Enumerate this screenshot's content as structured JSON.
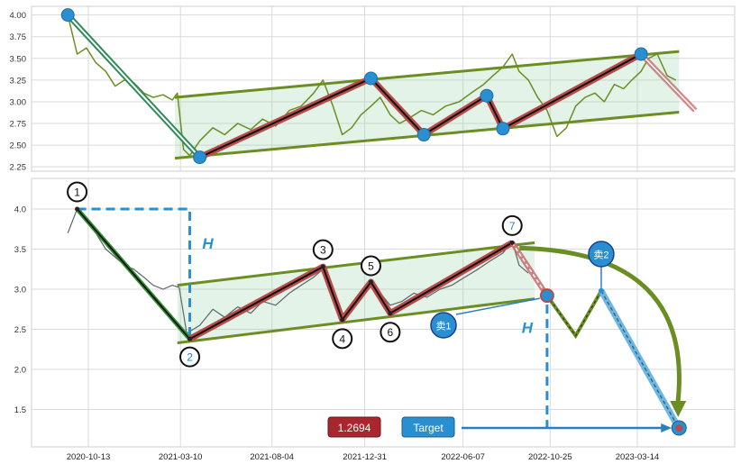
{
  "chart_data": [
    {
      "type": "line",
      "panel": "top",
      "series": [],
      "ylim": [
        2.2,
        4.1
      ],
      "yticks": [
        "2.25",
        "2.50",
        "2.75",
        "3.00",
        "3.25",
        "3.50",
        "3.75",
        "4.00"
      ],
      "grid": true,
      "price": [
        [
          "2020-09-10",
          4.0
        ],
        [
          "2020-09-25",
          3.55
        ],
        [
          "2020-10-10",
          3.62
        ],
        [
          "2020-10-25",
          3.45
        ],
        [
          "2020-11-10",
          3.35
        ],
        [
          "2020-11-25",
          3.18
        ],
        [
          "2020-12-10",
          3.25
        ],
        [
          "2020-12-25",
          3.22
        ],
        [
          "2021-01-10",
          3.1
        ],
        [
          "2021-01-25",
          3.05
        ],
        [
          "2021-02-10",
          3.08
        ],
        [
          "2021-02-25",
          3.02
        ],
        [
          "2021-03-05",
          3.1
        ],
        [
          "2021-03-15",
          2.45
        ],
        [
          "2021-03-25",
          2.38
        ],
        [
          "2021-04-10",
          2.55
        ],
        [
          "2021-05-01",
          2.7
        ],
        [
          "2021-05-20",
          2.62
        ],
        [
          "2021-06-10",
          2.75
        ],
        [
          "2021-07-01",
          2.68
        ],
        [
          "2021-07-20",
          2.8
        ],
        [
          "2021-08-10",
          2.72
        ],
        [
          "2021-09-01",
          2.9
        ],
        [
          "2021-09-20",
          2.95
        ],
        [
          "2021-10-10",
          3.1
        ],
        [
          "2021-10-25",
          3.25
        ],
        [
          "2021-11-10",
          2.95
        ],
        [
          "2021-11-25",
          2.62
        ],
        [
          "2021-12-10",
          2.7
        ],
        [
          "2021-12-25",
          2.85
        ],
        [
          "2022-01-10",
          2.95
        ],
        [
          "2022-01-25",
          3.05
        ],
        [
          "2022-02-10",
          2.85
        ],
        [
          "2022-02-25",
          2.75
        ],
        [
          "2022-03-10",
          2.8
        ],
        [
          "2022-04-01",
          2.9
        ],
        [
          "2022-04-20",
          2.85
        ],
        [
          "2022-05-10",
          2.95
        ],
        [
          "2022-06-01",
          3.0
        ],
        [
          "2022-06-20",
          3.1
        ],
        [
          "2022-07-10",
          3.2
        ],
        [
          "2022-07-25",
          3.3
        ],
        [
          "2022-08-10",
          3.4
        ],
        [
          "2022-08-25",
          3.55
        ],
        [
          "2022-09-05",
          3.35
        ],
        [
          "2022-09-20",
          3.25
        ],
        [
          "2022-10-05",
          3.05
        ],
        [
          "2022-10-20",
          2.9
        ],
        [
          "2022-11-05",
          2.6
        ],
        [
          "2022-11-20",
          2.7
        ],
        [
          "2022-12-05",
          2.95
        ],
        [
          "2022-12-20",
          3.05
        ],
        [
          "2023-01-05",
          3.1
        ],
        [
          "2023-01-20",
          3.0
        ],
        [
          "2023-02-05",
          3.2
        ],
        [
          "2023-02-20",
          3.15
        ],
        [
          "2023-03-05",
          3.25
        ],
        [
          "2023-03-20",
          3.35
        ],
        [
          "2023-04-01",
          3.5
        ],
        [
          "2023-04-15",
          3.55
        ],
        [
          "2023-05-01",
          3.3
        ],
        [
          "2023-05-15",
          3.25
        ]
      ],
      "pivots": [
        [
          "2020-09-10",
          4.0
        ],
        [
          "2021-04-10",
          2.36
        ],
        [
          "2022-01-10",
          3.27
        ],
        [
          "2022-04-05",
          2.62
        ],
        [
          "2022-07-15",
          3.07
        ],
        [
          "2022-08-10",
          2.69
        ],
        [
          "2023-03-20",
          3.55
        ]
      ],
      "channel_lower": [
        [
          "2021-03-01",
          2.35
        ],
        [
          "2023-05-20",
          2.88
        ]
      ],
      "channel_upper": [
        [
          "2021-03-01",
          3.05
        ],
        [
          "2023-05-20",
          3.58
        ]
      ],
      "projection": [
        [
          "2023-03-20",
          3.55
        ],
        [
          "2023-06-15",
          2.9
        ]
      ]
    },
    {
      "type": "line",
      "panel": "bottom",
      "series": [],
      "xlabel": "",
      "ylabel": "",
      "ylim": [
        1.08,
        4.4
      ],
      "yticks": [
        "1.5",
        "2.0",
        "2.5",
        "3.0",
        "3.5",
        "4.0"
      ],
      "xticks": [
        "2020-10-13",
        "2021-03-10",
        "2021-08-04",
        "2021-12-31",
        "2022-06-07",
        "2022-10-25",
        "2023-03-14"
      ],
      "grid": true,
      "price": [
        [
          "2020-09-10",
          3.7
        ],
        [
          "2020-09-25",
          4.0
        ],
        [
          "2020-10-10",
          3.85
        ],
        [
          "2020-10-25",
          3.7
        ],
        [
          "2020-11-10",
          3.5
        ],
        [
          "2020-11-25",
          3.4
        ],
        [
          "2020-12-10",
          3.3
        ],
        [
          "2020-12-25",
          3.25
        ],
        [
          "2021-01-10",
          3.15
        ],
        [
          "2021-01-25",
          3.05
        ],
        [
          "2021-02-10",
          3.0
        ],
        [
          "2021-02-25",
          3.05
        ],
        [
          "2021-03-08",
          3.02
        ],
        [
          "2021-03-20",
          2.45
        ],
        [
          "2021-04-10",
          2.55
        ],
        [
          "2021-05-01",
          2.75
        ],
        [
          "2021-05-20",
          2.65
        ],
        [
          "2021-06-10",
          2.78
        ],
        [
          "2021-07-01",
          2.7
        ],
        [
          "2021-07-20",
          2.85
        ],
        [
          "2021-08-10",
          2.8
        ],
        [
          "2021-09-01",
          2.95
        ],
        [
          "2021-09-20",
          3.05
        ],
        [
          "2021-10-10",
          3.15
        ],
        [
          "2021-10-25",
          3.25
        ],
        [
          "2021-11-10",
          2.95
        ],
        [
          "2021-11-25",
          2.65
        ],
        [
          "2021-12-10",
          2.8
        ],
        [
          "2021-12-25",
          2.95
        ],
        [
          "2022-01-10",
          3.05
        ],
        [
          "2022-01-25",
          2.95
        ],
        [
          "2022-02-10",
          2.8
        ],
        [
          "2022-03-01",
          2.85
        ],
        [
          "2022-03-20",
          2.95
        ],
        [
          "2022-04-10",
          2.9
        ],
        [
          "2022-05-01",
          3.0
        ],
        [
          "2022-05-20",
          3.05
        ],
        [
          "2022-06-10",
          3.15
        ],
        [
          "2022-07-01",
          3.25
        ],
        [
          "2022-07-20",
          3.35
        ],
        [
          "2022-08-10",
          3.45
        ],
        [
          "2022-08-25",
          3.6
        ],
        [
          "2022-09-05",
          3.3
        ],
        [
          "2022-09-20",
          3.2
        ]
      ],
      "pivots": [
        {
          "label": "1",
          "date": "2020-09-25",
          "value": 4.0
        },
        {
          "label": "2",
          "date": "2021-03-25",
          "value": 2.38
        },
        {
          "label": "3",
          "date": "2021-10-25",
          "value": 3.28
        },
        {
          "label": "4",
          "date": "2021-11-25",
          "value": 2.62
        },
        {
          "label": "5",
          "date": "2022-01-10",
          "value": 3.09
        },
        {
          "label": "6",
          "date": "2022-02-10",
          "value": 2.7
        },
        {
          "label": "7",
          "date": "2022-08-25",
          "value": 3.58
        }
      ],
      "channel_lower": [
        [
          "2021-03-05",
          2.33
        ],
        [
          "2022-09-30",
          2.88
        ]
      ],
      "channel_upper": [
        [
          "2021-03-05",
          3.05
        ],
        [
          "2022-09-30",
          3.58
        ]
      ],
      "projection": [
        [
          "2022-08-25",
          3.58
        ],
        [
          "2022-10-20",
          2.92
        ]
      ],
      "zigzag": [
        [
          "2022-10-20",
          2.92
        ],
        [
          "2022-12-05",
          2.42
        ],
        [
          "2023-01-15",
          2.98
        ]
      ],
      "decline": [
        [
          "2023-01-15",
          2.98
        ],
        [
          "2023-05-20",
          1.26
        ]
      ],
      "sell_markers": [
        {
          "label": "卖1",
          "date": "2022-10-20",
          "value": 2.92
        },
        {
          "label": "卖2",
          "date": "2023-01-15",
          "value": 2.98
        }
      ],
      "measure": {
        "label": "H",
        "top": 4.0,
        "bottom": 2.38
      },
      "target": {
        "label": "Target",
        "value": 1.2694,
        "value_text": "1.2694",
        "date": "2023-05-20"
      }
    }
  ]
}
